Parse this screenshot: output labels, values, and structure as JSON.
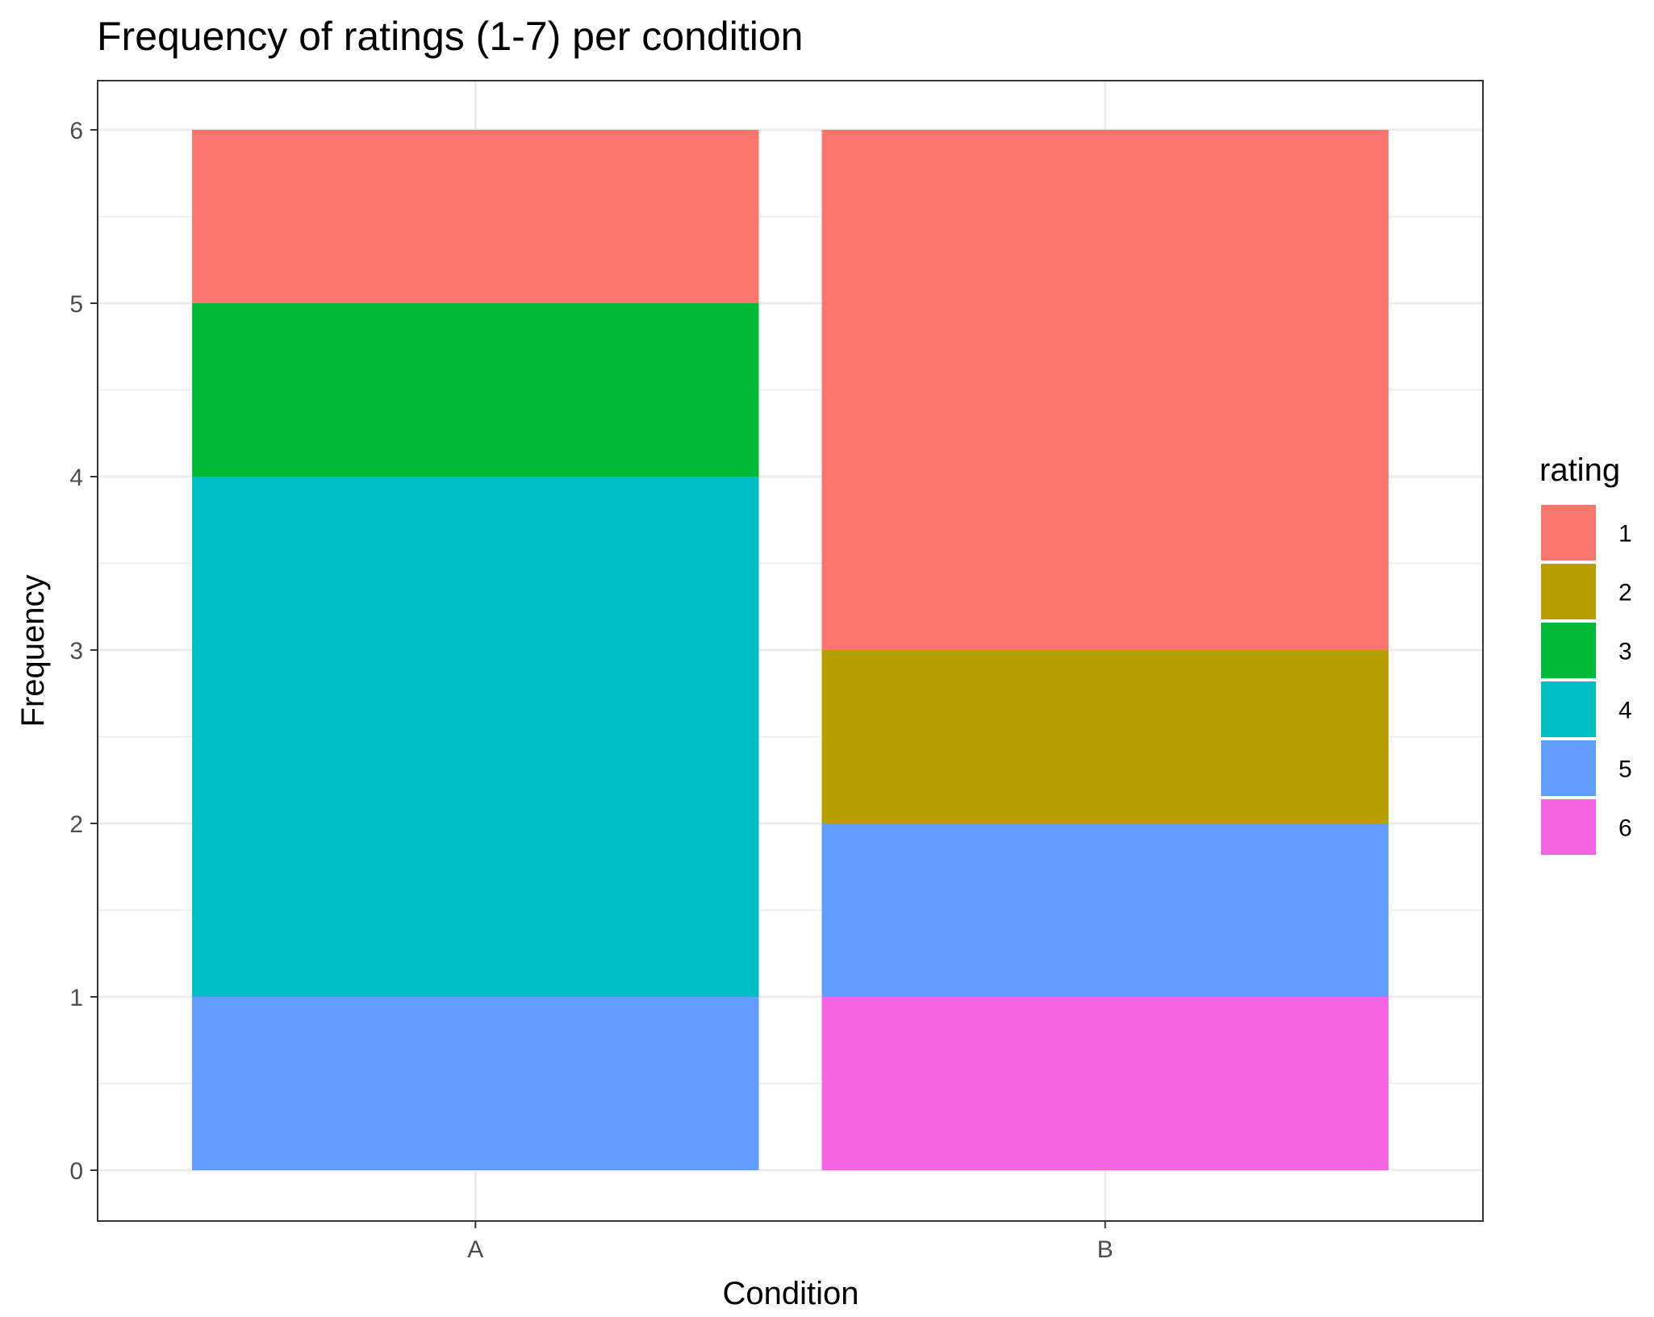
{
  "chart_data": {
    "type": "bar",
    "stacked": true,
    "title": "Frequency of ratings (1-7) per condition",
    "xlabel": "Condition",
    "ylabel": "Frequency",
    "categories": [
      "A",
      "B"
    ],
    "ylim": [
      0,
      6
    ],
    "yticks": [
      "0",
      "1",
      "2",
      "3",
      "4",
      "5",
      "6"
    ],
    "grid": true,
    "legend": {
      "title": "rating",
      "position": "right",
      "entries": [
        "1",
        "2",
        "3",
        "4",
        "5",
        "6"
      ]
    },
    "colors": {
      "1": "#F8766D",
      "2": "#B79F00",
      "3": "#00BA38",
      "4": "#00BFC4",
      "5": "#619CFF",
      "6": "#F564E3"
    },
    "series": [
      {
        "name": "1",
        "values": [
          1,
          3
        ]
      },
      {
        "name": "2",
        "values": [
          0,
          1
        ]
      },
      {
        "name": "3",
        "values": [
          1,
          0
        ]
      },
      {
        "name": "4",
        "values": [
          3,
          0
        ]
      },
      {
        "name": "5",
        "values": [
          1,
          1
        ]
      },
      {
        "name": "6",
        "values": [
          0,
          1
        ]
      }
    ]
  }
}
